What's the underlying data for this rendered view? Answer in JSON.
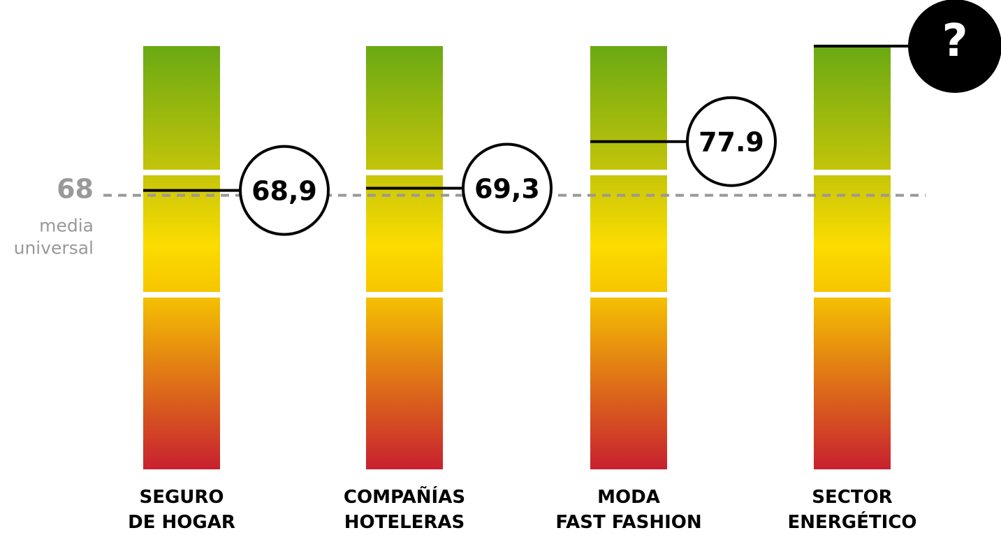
{
  "chart_data": {
    "type": "marker-bar",
    "categories": [
      [
        "SEGURO",
        "DE HOGAR"
      ],
      [
        "COMPAÑÍAS",
        "HOTELERAS"
      ],
      [
        "MODA",
        "FAST FASHION"
      ],
      [
        "SECTOR",
        "ENERGÉTICO"
      ]
    ],
    "values": [
      68.9,
      69.3,
      77.9,
      null
    ],
    "value_labels": [
      "68,9",
      "69,3",
      "77.9",
      "?"
    ],
    "ylim": [
      17.5,
      95.5
    ],
    "reference": {
      "value": 68,
      "label": [
        "media",
        "universal"
      ]
    }
  }
}
